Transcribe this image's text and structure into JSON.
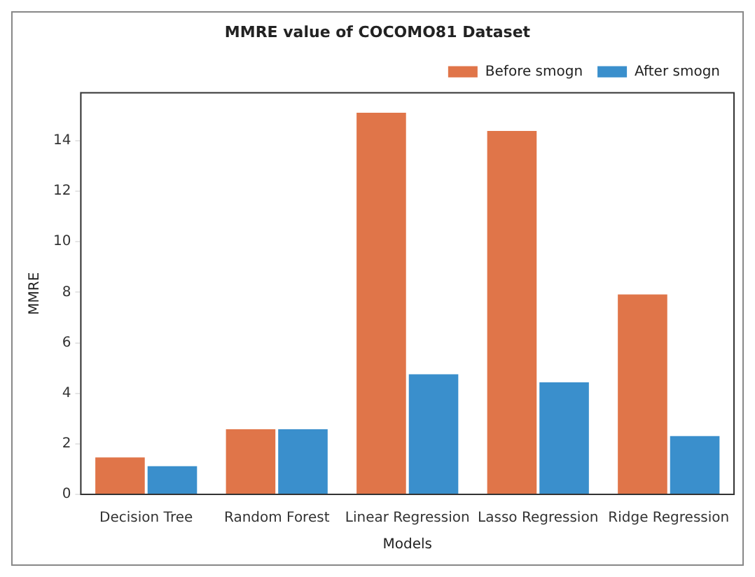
{
  "chart_data": {
    "type": "bar",
    "title": "MMRE value of COCOMO81 Dataset",
    "xlabel": "Models",
    "ylabel": "MMRE",
    "categories": [
      "Decision Tree",
      "Random Forest",
      "Linear Regression",
      "Lasso Regression",
      "Ridge Regression"
    ],
    "series": [
      {
        "name": "Before smogn",
        "color": "#e07549",
        "values": [
          1.52,
          2.63,
          15.16,
          14.44,
          7.97
        ]
      },
      {
        "name": "After smogn",
        "color": "#3a8fcc",
        "values": [
          1.17,
          2.63,
          4.81,
          4.49,
          2.36
        ]
      }
    ],
    "ylim": [
      0,
      15.9
    ],
    "yticks": [
      0,
      2,
      4,
      6,
      8,
      10,
      12,
      14
    ],
    "grid": false,
    "legend": "top right"
  }
}
